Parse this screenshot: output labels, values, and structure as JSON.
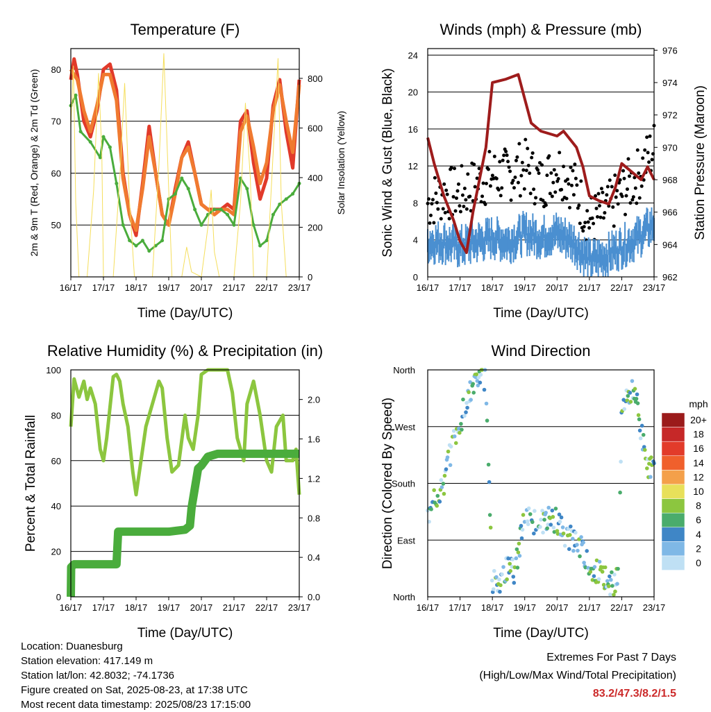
{
  "chart_data": [
    {
      "id": "temperature",
      "type": "line",
      "title": "Temperature (F)",
      "xlabel": "Time (Day/UTC)",
      "ylabel": "2m & 9m T (Red, Orange) & 2m Td (Green)",
      "y2label": "Solar Insolation (Yellow)",
      "x_ticks": [
        "16/17",
        "17/17",
        "18/17",
        "19/17",
        "20/17",
        "21/17",
        "22/17",
        "23/17"
      ],
      "ylim": [
        40,
        84
      ],
      "yticks": [
        50,
        60,
        70,
        80
      ],
      "y2lim": [
        0,
        920
      ],
      "y2ticks": [
        0,
        200,
        400,
        600,
        800
      ],
      "grid": true,
      "series": [
        {
          "color": "#e13a2a",
          "axis": "left",
          "x": [
            0,
            0.1,
            0.2,
            0.4,
            0.6,
            0.8,
            1.0,
            1.2,
            1.4,
            1.6,
            1.8,
            2.0,
            2.2,
            2.4,
            2.6,
            2.8,
            3.0,
            3.2,
            3.4,
            3.6,
            3.8,
            4.0,
            4.2,
            4.4,
            4.6,
            4.8,
            5.0,
            5.2,
            5.4,
            5.6,
            5.8,
            6.0,
            6.2,
            6.4,
            6.6,
            6.8,
            7.0
          ],
          "y": [
            78,
            82,
            79,
            70,
            67,
            72,
            80,
            81,
            76,
            60,
            52,
            48,
            58,
            69,
            60,
            52,
            50,
            57,
            63,
            66,
            60,
            54,
            53,
            53,
            53,
            54,
            53,
            70,
            72,
            62,
            55,
            59,
            73,
            78,
            68,
            61,
            78
          ]
        },
        {
          "color": "#f07a30",
          "axis": "left",
          "x": [
            0,
            0.2,
            0.4,
            0.6,
            0.8,
            1.0,
            1.2,
            1.4,
            1.6,
            1.8,
            2.0,
            2.2,
            2.4,
            2.6,
            2.8,
            3.0,
            3.2,
            3.4,
            3.6,
            3.8,
            4.0,
            4.2,
            4.4,
            4.6,
            4.8,
            5.0,
            5.2,
            5.4,
            5.6,
            5.8,
            6.0,
            6.2,
            6.4,
            6.6,
            6.8,
            7.0
          ],
          "y": [
            80,
            78,
            72,
            68,
            73,
            79,
            79,
            74,
            59,
            52,
            49,
            57,
            67,
            60,
            52,
            50,
            56,
            63,
            65,
            60,
            54,
            53,
            52,
            53,
            53,
            52,
            68,
            71,
            65,
            58,
            62,
            72,
            77,
            70,
            64,
            77
          ]
        },
        {
          "color": "#4aac3c",
          "axis": "left",
          "x": [
            0,
            0.15,
            0.3,
            0.6,
            0.9,
            1.0,
            1.2,
            1.4,
            1.6,
            1.8,
            2.0,
            2.2,
            2.4,
            2.6,
            2.8,
            3.0,
            3.2,
            3.4,
            3.6,
            3.8,
            4.0,
            4.2,
            4.4,
            4.6,
            4.8,
            5.0,
            5.2,
            5.4,
            5.6,
            5.8,
            6.0,
            6.2,
            6.4,
            6.6,
            6.8,
            7.0
          ],
          "y": [
            73,
            75,
            68,
            66,
            63,
            67,
            65,
            58,
            50,
            47,
            46,
            47,
            45,
            46,
            47,
            55,
            56,
            59,
            57,
            53,
            50,
            52,
            53,
            53,
            52,
            50,
            59,
            57,
            50,
            46,
            47,
            52,
            54,
            55,
            56,
            58
          ]
        },
        {
          "color": "#f5de5c",
          "axis": "right",
          "x": [
            0,
            0.08,
            0.15,
            0.25,
            0.5,
            0.7,
            0.85,
            0.95,
            1.0,
            1.1,
            1.3,
            1.5,
            1.65,
            1.8,
            1.95,
            2.05,
            2.5,
            2.7,
            2.85,
            3.0,
            3.1,
            3.2,
            3.4,
            3.55,
            3.7,
            4.0,
            4.2,
            4.3,
            4.4,
            4.55,
            4.7,
            5.0,
            5.2,
            5.35,
            5.5,
            5.6,
            5.7,
            6.0,
            6.2,
            6.35,
            6.45,
            6.6,
            6.7,
            7.0
          ],
          "y": [
            600,
            850,
            300,
            0,
            0,
            350,
            820,
            500,
            0,
            0,
            0,
            400,
            780,
            300,
            0,
            0,
            0,
            450,
            900,
            350,
            0,
            0,
            0,
            120,
            20,
            0,
            200,
            350,
            100,
            0,
            0,
            0,
            300,
            700,
            400,
            0,
            0,
            0,
            500,
            880,
            300,
            0,
            0,
            0
          ]
        }
      ]
    },
    {
      "id": "winds",
      "type": "scatter",
      "title": "Winds (mph) & Pressure (mb)",
      "xlabel": "Time (Day/UTC)",
      "ylabel": "Sonic Wind & Gust (Blue, Black)",
      "y2label": "Station Pressure (Maroon)",
      "x_ticks": [
        "16/17",
        "17/17",
        "18/17",
        "19/17",
        "20/17",
        "21/17",
        "22/17",
        "23/17"
      ],
      "ylim": [
        0,
        24.7
      ],
      "yticks": [
        0,
        4,
        8,
        12,
        16,
        20,
        24
      ],
      "y2lim": [
        962,
        976.1
      ],
      "y2ticks": [
        962,
        964,
        966,
        968,
        970,
        972,
        974,
        976
      ],
      "grid": true,
      "series": [
        {
          "color": "#000000",
          "kind": "gust-dots",
          "x": [
            0,
            0.5,
            1.0,
            1.5,
            2.0,
            2.5,
            3.0,
            3.5,
            4.0,
            4.5,
            5.0,
            5.5,
            6.0,
            6.5,
            7.0
          ],
          "y": [
            8,
            9,
            9,
            10,
            11,
            11,
            12,
            10,
            12,
            10,
            6,
            7,
            9,
            11,
            14
          ]
        },
        {
          "color": "#4a8fd0",
          "kind": "wind-band",
          "x": [
            0,
            0.5,
            1.0,
            1.5,
            2.0,
            2.5,
            3.0,
            3.5,
            4.0,
            4.5,
            5.0,
            5.5,
            6.0,
            6.5,
            7.0
          ],
          "y": [
            4,
            4,
            3.5,
            4,
            4.5,
            4,
            5,
            4.5,
            5,
            4,
            2,
            2.5,
            3.5,
            4.5,
            6
          ]
        },
        {
          "color": "#9e1c1c",
          "kind": "pressure",
          "axis": "right",
          "x": [
            0,
            0.2,
            0.5,
            0.8,
            1.0,
            1.2,
            1.4,
            1.6,
            1.8,
            2.0,
            2.4,
            2.8,
            3.0,
            3.2,
            3.5,
            4.0,
            4.2,
            4.4,
            4.6,
            4.8,
            5.0,
            5.3,
            5.6,
            5.8,
            6.0,
            6.3,
            6.6,
            6.8,
            7.0
          ],
          "y": [
            970.6,
            969,
            967,
            965.5,
            964.2,
            963.5,
            966,
            968,
            970,
            974,
            974.2,
            974.5,
            973,
            971.5,
            971,
            970.7,
            971,
            970.5,
            970,
            968.8,
            967,
            966.7,
            966.5,
            967.5,
            969,
            968.5,
            968,
            968.8,
            968
          ]
        }
      ]
    },
    {
      "id": "humidity",
      "type": "line",
      "title": "Relative Humidity (%) & Precipitation (in)",
      "xlabel": "Time (Day/UTC)",
      "ylabel": "Percent & Total Rainfall",
      "x_ticks": [
        "16/17",
        "17/17",
        "18/17",
        "19/17",
        "20/17",
        "21/17",
        "22/17",
        "23/17"
      ],
      "ylim": [
        0,
        100
      ],
      "yticks": [
        0,
        20,
        40,
        60,
        80,
        100
      ],
      "y2lim": [
        0,
        2.3
      ],
      "y2ticks": [
        "0.0",
        "0.4",
        "0.8",
        "1.2",
        "1.6",
        "2.0"
      ],
      "grid": true,
      "series": [
        {
          "color": "#8cc63f",
          "x": [
            0,
            0.1,
            0.25,
            0.4,
            0.5,
            0.6,
            0.75,
            0.9,
            1.0,
            1.1,
            1.3,
            1.4,
            1.5,
            1.6,
            1.75,
            1.9,
            2.0,
            2.15,
            2.3,
            2.5,
            2.7,
            2.8,
            2.95,
            3.1,
            3.3,
            3.5,
            3.6,
            3.75,
            3.9,
            4.0,
            4.2,
            4.5,
            4.7,
            4.8,
            4.95,
            5.1,
            5.3,
            5.4,
            5.6,
            5.8,
            6.0,
            6.15,
            6.3,
            6.5,
            6.6,
            6.8,
            6.9,
            7.0
          ],
          "y": [
            75,
            96,
            88,
            95,
            87,
            92,
            85,
            65,
            60,
            70,
            97,
            98,
            95,
            85,
            75,
            55,
            45,
            60,
            75,
            85,
            95,
            92,
            70,
            55,
            58,
            80,
            70,
            65,
            80,
            98,
            100,
            100,
            100,
            100,
            90,
            70,
            60,
            85,
            95,
            80,
            60,
            55,
            75,
            80,
            60,
            60,
            65,
            45
          ]
        },
        {
          "color": "#4aac3c",
          "kind": "precip",
          "axis": "right",
          "x": [
            0,
            0.01,
            0.1,
            1.0,
            1.4,
            1.45,
            2.0,
            3.0,
            3.5,
            3.65,
            3.7,
            3.8,
            3.9,
            4.0,
            4.2,
            4.5,
            5.0,
            6.0,
            7.0
          ],
          "y": [
            0,
            0.3,
            0.33,
            0.33,
            0.33,
            0.66,
            0.66,
            0.66,
            0.68,
            0.72,
            0.9,
            1.1,
            1.3,
            1.33,
            1.42,
            1.45,
            1.45,
            1.45,
            1.45
          ]
        }
      ]
    },
    {
      "id": "direction",
      "type": "scatter",
      "title": "Wind Direction",
      "xlabel": "Time (Day/UTC)",
      "ylabel": "Direction (Colored By Speed)",
      "x_ticks": [
        "16/17",
        "17/17",
        "18/17",
        "19/17",
        "20/17",
        "21/17",
        "22/17",
        "23/17"
      ],
      "y_ticks": [
        "North",
        "East",
        "South",
        "West",
        "North"
      ],
      "ylim": [
        0,
        360
      ],
      "grid": true,
      "legend": {
        "title": "mph",
        "labels": [
          "20+",
          "18",
          "16",
          "14",
          "12",
          "10",
          "8",
          "6",
          "4",
          "2",
          "0"
        ],
        "colors": [
          "#9b1b1b",
          "#c62828",
          "#e23b2a",
          "#f0602c",
          "#f4a04a",
          "#e8e05a",
          "#8cc63f",
          "#4aac6c",
          "#3f86c6",
          "#7fb8e6",
          "#bfe0f4"
        ]
      },
      "series": [
        {
          "x": [
            0,
            0.2,
            0.5,
            0.8,
            1.0,
            1.1,
            1.3,
            1.5,
            1.7,
            1.8,
            2.0,
            2.3,
            2.5,
            2.7,
            3.0,
            3.2,
            3.5,
            3.8,
            4.0,
            4.2,
            4.4,
            4.6,
            4.8,
            5.0,
            5.2,
            5.5,
            5.7,
            5.9,
            6.0,
            6.2,
            6.4,
            6.6,
            6.8,
            7.0
          ],
          "y": [
            120,
            150,
            180,
            250,
            270,
            300,
            320,
            350,
            355,
            340,
            20,
            30,
            50,
            40,
            130,
            120,
            120,
            125,
            120,
            100,
            95,
            90,
            70,
            50,
            40,
            30,
            20,
            30,
            300,
            320,
            330,
            260,
            210,
            200
          ]
        }
      ]
    }
  ],
  "info": {
    "location": "Location: Duanesburg",
    "elevation": "Station elevation: 417.149 m",
    "latlon": "Station lat/lon: 42.8032; -74.1736",
    "created": "Figure created on Sat, 2025-08-23, at 17:38 UTC",
    "recent": "Most recent data timestamp: 2025/08/23 17:15:00"
  },
  "extremes": {
    "title": "Extremes For Past 7 Days",
    "subtitle": "(High/Low/Max Wind/Total Precipitation)",
    "value": "83.2/47.3/8.2/1.5"
  }
}
